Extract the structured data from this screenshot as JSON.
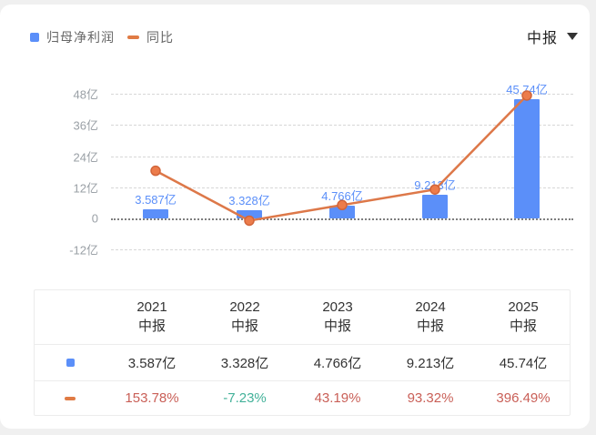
{
  "header": {
    "period_selector": {
      "label": "中报",
      "icon": "caret-down-icon"
    }
  },
  "chart_data": {
    "type": "bar+line",
    "title": "",
    "categories": [
      "2021中报",
      "2022中报",
      "2023中报",
      "2024中报",
      "2025中报"
    ],
    "series": [
      {
        "name": "归母净利润",
        "type": "bar",
        "unit": "亿",
        "color": "#5b8ff9",
        "values": [
          3.587,
          3.328,
          4.766,
          9.213,
          45.74
        ],
        "labels": [
          "3.587亿",
          "3.328亿",
          "4.766亿",
          "9.213亿",
          "45.74亿"
        ]
      },
      {
        "name": "同比",
        "type": "line",
        "unit": "%",
        "color": "#dd7849",
        "values": [
          153.78,
          -7.23,
          43.19,
          93.32,
          396.49
        ],
        "labels": [
          "153.78%",
          "-7.23%",
          "43.19%",
          "93.32%",
          "396.49%"
        ]
      }
    ],
    "y_axis": {
      "tick_labels": [
        "48亿",
        "36亿",
        "24亿",
        "12亿",
        "0",
        "-12亿"
      ],
      "tick_values": [
        48,
        36,
        24,
        12,
        0,
        -12
      ]
    },
    "grid": "horizontal dashed, darker dotted zero line",
    "legend_position": "top-left"
  },
  "table": {
    "header_years": [
      "2021",
      "2022",
      "2023",
      "2024",
      "2025"
    ],
    "header_sub": "中报",
    "rows": [
      {
        "series": "归母净利润",
        "swatch": "blue-square",
        "cells": [
          "3.587亿",
          "3.328亿",
          "4.766亿",
          "9.213亿",
          "45.74亿"
        ],
        "cell_colors": [
          "#333333",
          "#333333",
          "#333333",
          "#333333",
          "#333333"
        ]
      },
      {
        "series": "同比",
        "swatch": "orange-dash",
        "cells": [
          "153.78%",
          "-7.23%",
          "43.19%",
          "93.32%",
          "396.49%"
        ],
        "cell_colors": [
          "#c95f57",
          "#42b199",
          "#c95f57",
          "#c95f57",
          "#c95f57"
        ]
      }
    ]
  },
  "colors": {
    "bar_blue": "#5b8ff9",
    "line_orange": "#dd7849",
    "dot_fill": "#ec7c4b",
    "dot_stroke": "#d2653a",
    "bar_label_blue": "#5b8ff9",
    "axis_text": "#9aa0a6",
    "grid_line": "#d7d7d7",
    "zero_line": "#7e7e7e",
    "legend_text": "#666666",
    "table_text": "#333333",
    "negative_green": "#42b199",
    "positive_red": "#c95f57"
  }
}
